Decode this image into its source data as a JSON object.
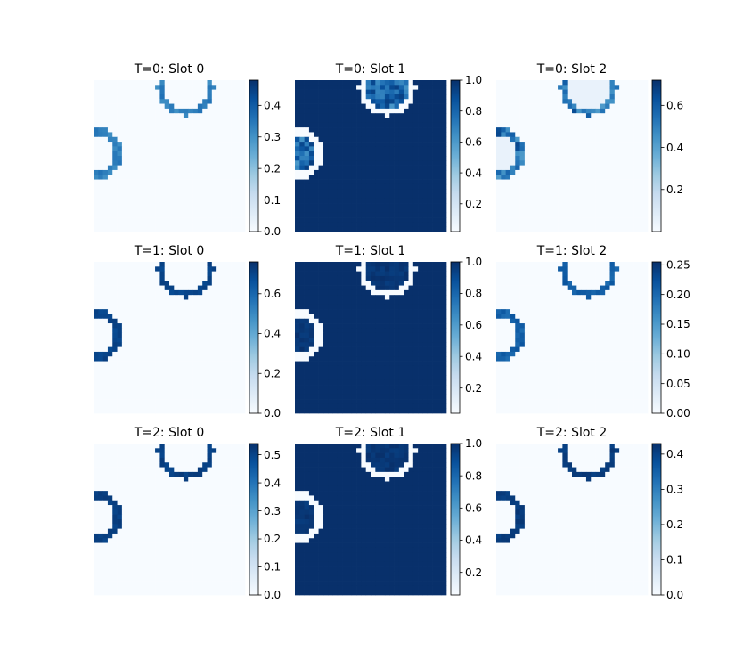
{
  "chart_data": {
    "type": "heatmap",
    "grid_size": 32,
    "colormap": "Blues",
    "colormap_stops": [
      "#f7fbff",
      "#deebf7",
      "#c6dbef",
      "#9ecae1",
      "#6baed6",
      "#4292c6",
      "#2171b5",
      "#08519c",
      "#08306b"
    ],
    "grid": false,
    "panels": [
      {
        "title": "T=0: Slot 0",
        "vmin": 0.0,
        "vmax": 0.48,
        "ticks": [
          "0.0",
          "0.1",
          "0.2",
          "0.3",
          "0.4"
        ],
        "pattern": "ring",
        "bg": 0.0,
        "ring_value": 0.36,
        "fill_value": 0.0,
        "noise": 0.12
      },
      {
        "title": "T=0: Slot 1",
        "vmin": 0.02,
        "vmax": 1.0,
        "ticks": [
          "0.2",
          "0.4",
          "0.6",
          "0.8",
          "1.0"
        ],
        "pattern": "inverse",
        "bg": 1.0,
        "ring_value": 0.02,
        "fill_value": 0.95,
        "noise": 0.35
      },
      {
        "title": "T=0: Slot 2",
        "vmin": 0.0,
        "vmax": 0.72,
        "ticks": [
          "0.2",
          "0.4",
          "0.6"
        ],
        "pattern": "ring",
        "bg": 0.0,
        "ring_value": 0.66,
        "fill_value": 0.05,
        "noise": 0.35
      },
      {
        "title": "T=1: Slot 0",
        "vmin": 0.0,
        "vmax": 0.76,
        "ticks": [
          "0.0",
          "0.2",
          "0.4",
          "0.6"
        ],
        "pattern": "ring",
        "bg": 0.0,
        "ring_value": 0.72,
        "fill_value": 0.0,
        "noise": 0.05
      },
      {
        "title": "T=1: Slot 1",
        "vmin": 0.04,
        "vmax": 1.0,
        "ticks": [
          "0.2",
          "0.4",
          "0.6",
          "0.8",
          "1.0"
        ],
        "pattern": "inverse",
        "bg": 1.0,
        "ring_value": 0.04,
        "fill_value": 1.0,
        "noise": 0.05
      },
      {
        "title": "T=1: Slot 2",
        "vmin": 0.0,
        "vmax": 0.255,
        "ticks": [
          "0.00",
          "0.05",
          "0.10",
          "0.15",
          "0.20",
          "0.25"
        ],
        "pattern": "ring",
        "bg": 0.0,
        "ring_value": 0.22,
        "fill_value": 0.0,
        "noise": 0.1
      },
      {
        "title": "T=2: Slot 0",
        "vmin": 0.0,
        "vmax": 0.54,
        "ticks": [
          "0.0",
          "0.1",
          "0.2",
          "0.3",
          "0.4",
          "0.5"
        ],
        "pattern": "ring",
        "bg": 0.0,
        "ring_value": 0.52,
        "fill_value": 0.0,
        "noise": 0.05
      },
      {
        "title": "T=2: Slot 1",
        "vmin": 0.06,
        "vmax": 1.0,
        "ticks": [
          "0.2",
          "0.4",
          "0.6",
          "0.8",
          "1.0"
        ],
        "pattern": "inverse",
        "bg": 1.0,
        "ring_value": 0.06,
        "fill_value": 1.0,
        "noise": 0.05
      },
      {
        "title": "T=2: Slot 2",
        "vmin": 0.0,
        "vmax": 0.43,
        "ticks": [
          "0.0",
          "0.1",
          "0.2",
          "0.3",
          "0.4"
        ],
        "pattern": "ring",
        "bg": 0.0,
        "ring_value": 0.42,
        "fill_value": 0.0,
        "noise": 0.05
      }
    ],
    "circles": [
      {
        "cx": 19.5,
        "cy": 1.5,
        "r": 5.3
      },
      {
        "cx": 0.5,
        "cy": 15.5,
        "r": 4.7
      }
    ]
  }
}
